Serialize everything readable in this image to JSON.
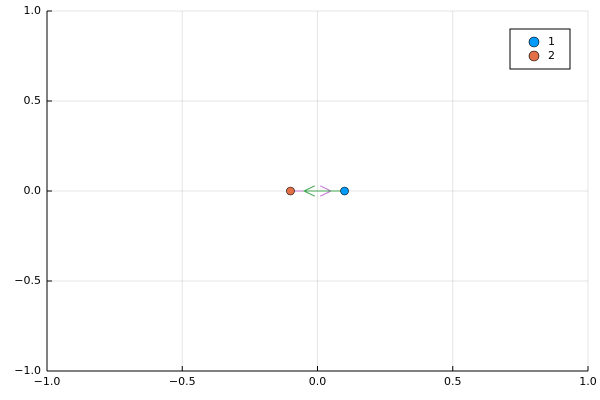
{
  "chart_data": {
    "type": "scatter",
    "series": [
      {
        "name": "1",
        "color": "#009af9",
        "x": [
          0.1
        ],
        "values": [
          0
        ]
      },
      {
        "name": "2",
        "color": "#e26f46",
        "x": [
          -0.1
        ],
        "values": [
          0
        ]
      }
    ],
    "quiver": [
      {
        "color": "#c271d2",
        "x": [
          -0.1,
          0.05
        ],
        "values": [
          0,
          0
        ]
      },
      {
        "color": "#3da44d",
        "x": [
          0.1,
          -0.05
        ],
        "values": [
          0,
          0
        ]
      }
    ],
    "xlim": [
      -1,
      1
    ],
    "ylim": [
      -1,
      1
    ],
    "xticks": [
      {
        "value": -1,
        "label": "−1.0"
      },
      {
        "value": -0.5,
        "label": "−0.5"
      },
      {
        "value": 0,
        "label": "0.0"
      },
      0.5,
      {
        "value": 1,
        "label": "1.0"
      }
    ],
    "yticks": [
      {
        "value": -1,
        "label": "−1.0"
      },
      {
        "value": -0.5,
        "label": "−0.5"
      },
      {
        "value": 0,
        "label": "0.0"
      },
      0.5,
      {
        "value": 1,
        "label": "1.0"
      }
    ],
    "grid": true,
    "legend": "top-right"
  }
}
